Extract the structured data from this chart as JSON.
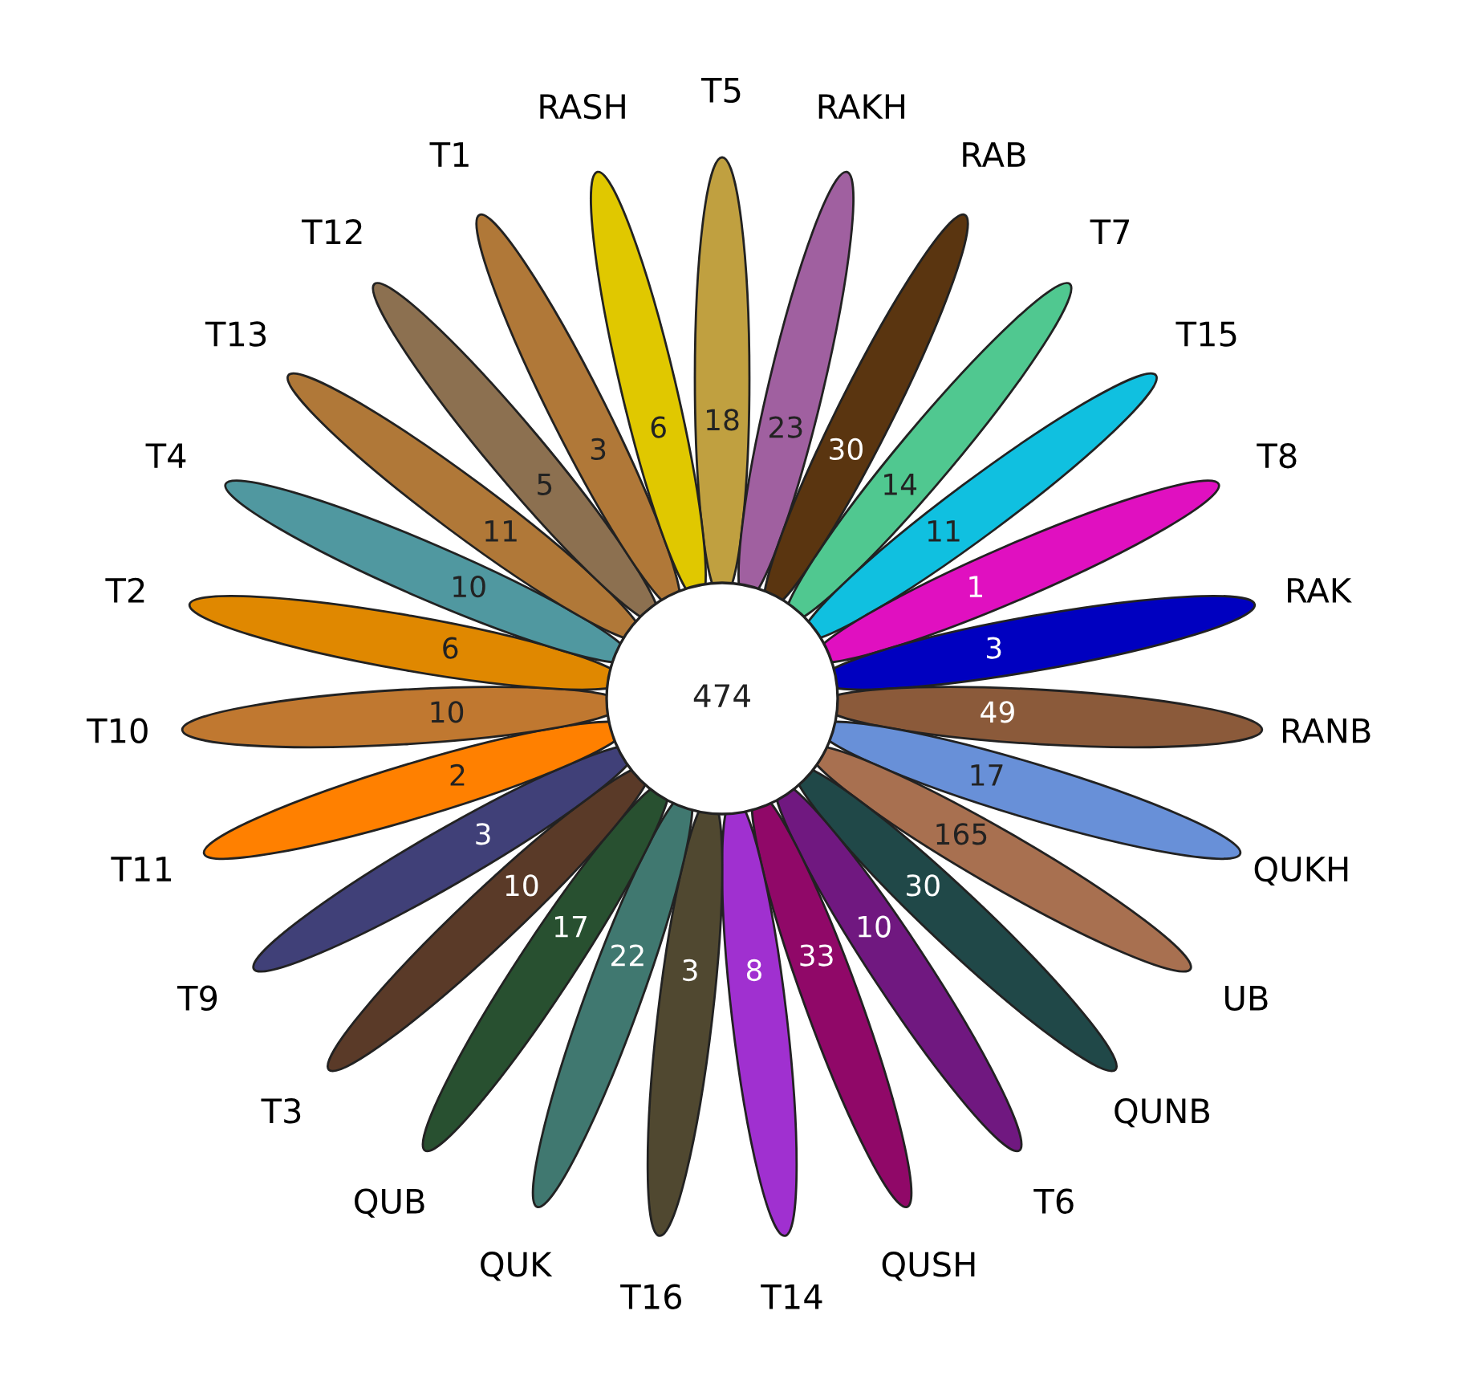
{
  "chart_data": {
    "type": "other",
    "categories": [
      "T5",
      "RAKH",
      "RAB",
      "T7",
      "T15",
      "T8",
      "RAK",
      "RANB",
      "QUKH",
      "UB",
      "QUNB",
      "T6",
      "QUSH",
      "T14",
      "T16",
      "QUK",
      "QUB",
      "T3",
      "T9",
      "T11",
      "T10",
      "T2",
      "T4",
      "T13",
      "T12",
      "T1",
      "RASH"
    ],
    "values": [
      18,
      23,
      30,
      14,
      11,
      1,
      3,
      49,
      17,
      165,
      30,
      10,
      33,
      8,
      3,
      22,
      17,
      10,
      3,
      2,
      10,
      6,
      10,
      11,
      5,
      3,
      6
    ],
    "colors": [
      "#c0a040",
      "#a060a0",
      "#5a3510",
      "#50c890",
      "#10c0e0",
      "#e010c0",
      "#0000c0",
      "#8b5a3a",
      "#6890d8",
      "#a87050",
      "#204848",
      "#701880",
      "#900868",
      "#a030d0",
      "#504830",
      "#407870",
      "#285030",
      "#5a3a28",
      "#404078",
      "#ff8000",
      "#c07830",
      "#e08800",
      "#5098a0",
      "#b07838",
      "#8c7050",
      "#b07838",
      "#e0c800"
    ],
    "data_labels": true,
    "annotations": [
      "474"
    ]
  }
}
